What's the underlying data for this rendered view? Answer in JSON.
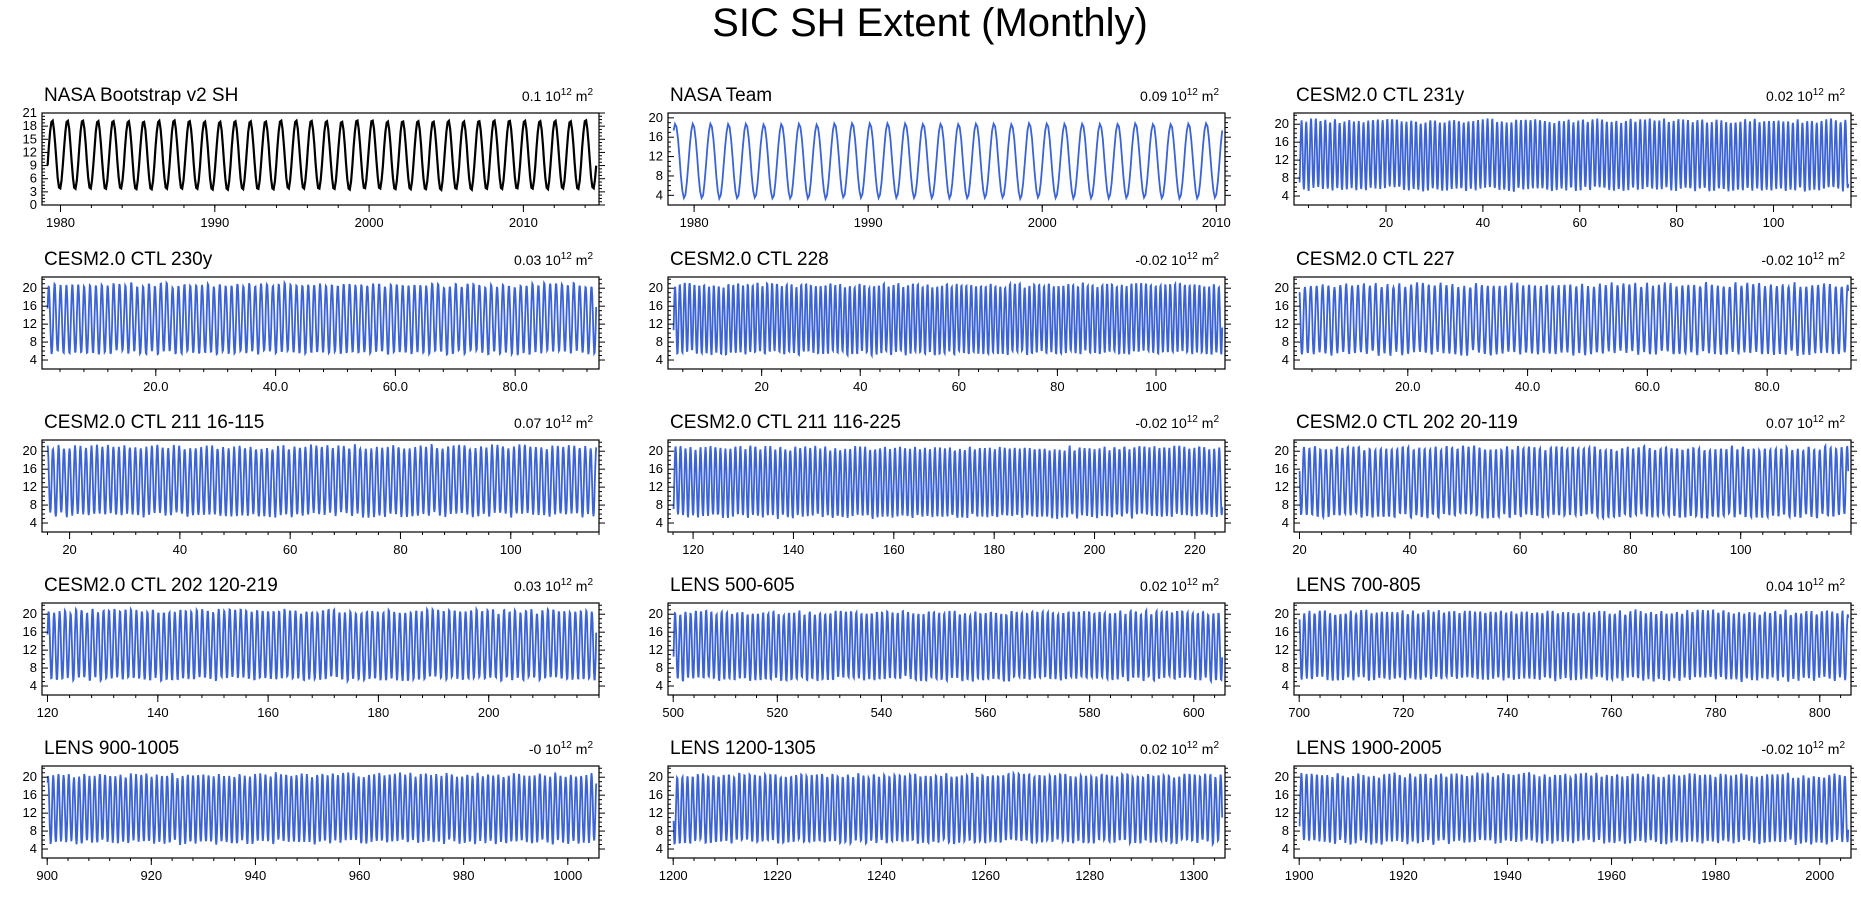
{
  "title": "SIC SH Extent (Monthly)",
  "colors": {
    "black": "#000000",
    "blue": "#3b63d6"
  },
  "chart_data": [
    {
      "type": "line",
      "title": "NASA Bootstrap v2 SH",
      "value": "0.1",
      "color": "#000000",
      "xlim": [
        1978.8,
        2014.9
      ],
      "ylim": [
        0,
        21
      ],
      "yticks": [
        0,
        3,
        6,
        9,
        12,
        15,
        18,
        21
      ],
      "xticks": [
        1980,
        1990,
        2000,
        2010
      ],
      "xticklabels": [
        "1980",
        "1990",
        "2000",
        "2010"
      ],
      "cycles": 36,
      "min": 3.5,
      "max": 19.3,
      "phase": 0.2,
      "noise": 0.25
    },
    {
      "type": "line",
      "title": "NASA Team",
      "value": "0.09",
      "color": "#3b63d6",
      "xlim": [
        1978.5,
        2010.5
      ],
      "ylim": [
        2,
        21
      ],
      "yticks": [
        4,
        8,
        12,
        16,
        20
      ],
      "xticks": [
        1980,
        1990,
        2000,
        2010
      ],
      "xticklabels": [
        "1980",
        "1990",
        "2000",
        "2010"
      ],
      "cycles": 31,
      "min": 3.4,
      "max": 18.8,
      "phase": 0.4,
      "noise": 0.2
    },
    {
      "type": "line",
      "title": "CESM2.0 CTL 231y",
      "value": "0.02",
      "color": "#3b63d6",
      "xlim": [
        1,
        116
      ],
      "ylim": [
        2,
        22.5
      ],
      "yticks": [
        4,
        8,
        12,
        16,
        20
      ],
      "xticks": [
        20,
        40,
        60,
        80,
        100
      ],
      "xticklabels": [
        "20",
        "40",
        "60",
        "80",
        "100"
      ],
      "cycles": 115,
      "min": 5.5,
      "max": 20.8,
      "phase": 0.1,
      "noise": 0.8
    },
    {
      "type": "line",
      "title": "CESM2.0 CTL 230y",
      "value": "0.03",
      "color": "#3b63d6",
      "xlim": [
        1,
        94
      ],
      "ylim": [
        2,
        22.5
      ],
      "yticks": [
        4,
        8,
        12,
        16,
        20
      ],
      "xticks": [
        20,
        40,
        60,
        80
      ],
      "xticklabels": [
        "20.0",
        "40.0",
        "60.0",
        "80.0"
      ],
      "cycles": 93,
      "min": 5.5,
      "max": 20.8,
      "phase": 0.3,
      "noise": 0.8
    },
    {
      "type": "line",
      "title": "CESM2.0 CTL 228",
      "value": "-0.02",
      "color": "#3b63d6",
      "xlim": [
        1,
        114
      ],
      "ylim": [
        2,
        22.5
      ],
      "yticks": [
        4,
        8,
        12,
        16,
        20
      ],
      "xticks": [
        20,
        40,
        60,
        80,
        100
      ],
      "xticklabels": [
        "20",
        "40",
        "60",
        "80",
        "100"
      ],
      "cycles": 113,
      "min": 5.5,
      "max": 20.8,
      "phase": 0.2,
      "noise": 0.8
    },
    {
      "type": "line",
      "title": "CESM2.0 CTL 227",
      "value": "-0.02",
      "color": "#3b63d6",
      "xlim": [
        1,
        94
      ],
      "ylim": [
        2,
        22.5
      ],
      "yticks": [
        4,
        8,
        12,
        16,
        20
      ],
      "xticks": [
        20,
        40,
        60,
        80
      ],
      "xticklabels": [
        "20.0",
        "40.0",
        "60.0",
        "80.0"
      ],
      "cycles": 93,
      "min": 5.5,
      "max": 20.8,
      "phase": 0.6,
      "noise": 0.8
    },
    {
      "type": "line",
      "title": "CESM2.0 CTL 211 16-115",
      "value": "0.07",
      "color": "#3b63d6",
      "xlim": [
        15,
        116
      ],
      "ylim": [
        2,
        22.5
      ],
      "yticks": [
        4,
        8,
        12,
        16,
        20
      ],
      "xticks": [
        20,
        40,
        60,
        80,
        100
      ],
      "xticklabels": [
        "20",
        "40",
        "60",
        "80",
        "100"
      ],
      "cycles": 100,
      "min": 5.8,
      "max": 21.0,
      "phase": 0.5,
      "noise": 0.8
    },
    {
      "type": "line",
      "title": "CESM2.0 CTL 211 116-225",
      "value": "-0.02",
      "color": "#3b63d6",
      "xlim": [
        115,
        226
      ],
      "ylim": [
        2,
        22.5
      ],
      "yticks": [
        4,
        8,
        12,
        16,
        20
      ],
      "xticks": [
        120,
        140,
        160,
        180,
        200,
        220
      ],
      "xticklabels": [
        "120",
        "140",
        "160",
        "180",
        "200",
        "220"
      ],
      "cycles": 110,
      "min": 5.5,
      "max": 20.8,
      "phase": 0.1,
      "noise": 0.8
    },
    {
      "type": "line",
      "title": "CESM2.0 CTL 202 20-119",
      "value": "0.07",
      "color": "#3b63d6",
      "xlim": [
        19,
        120
      ],
      "ylim": [
        2,
        22.5
      ],
      "yticks": [
        4,
        8,
        12,
        16,
        20
      ],
      "xticks": [
        20,
        40,
        60,
        80,
        100
      ],
      "xticklabels": [
        "20",
        "40",
        "60",
        "80",
        "100"
      ],
      "cycles": 100,
      "min": 5.5,
      "max": 20.8,
      "phase": 0.7,
      "noise": 0.8
    },
    {
      "type": "line",
      "title": "CESM2.0 CTL 202 120-219",
      "value": "0.03",
      "color": "#3b63d6",
      "xlim": [
        119,
        220
      ],
      "ylim": [
        2,
        22.5
      ],
      "yticks": [
        4,
        8,
        12,
        16,
        20
      ],
      "xticks": [
        120,
        140,
        160,
        180,
        200
      ],
      "xticklabels": [
        "120",
        "140",
        "160",
        "180",
        "200"
      ],
      "cycles": 100,
      "min": 5.5,
      "max": 20.8,
      "phase": 0.3,
      "noise": 0.8
    },
    {
      "type": "line",
      "title": "LENS 500-605",
      "value": "0.02",
      "color": "#3b63d6",
      "xlim": [
        499,
        606
      ],
      "ylim": [
        2,
        22.5
      ],
      "yticks": [
        4,
        8,
        12,
        16,
        20
      ],
      "xticks": [
        500,
        520,
        540,
        560,
        580,
        600
      ],
      "xticklabels": [
        "500",
        "520",
        "540",
        "560",
        "580",
        "600"
      ],
      "cycles": 106,
      "min": 5.5,
      "max": 20.5,
      "phase": 0.2,
      "noise": 0.8
    },
    {
      "type": "line",
      "title": "LENS 700-805",
      "value": "0.04",
      "color": "#3b63d6",
      "xlim": [
        699,
        806
      ],
      "ylim": [
        2,
        22.5
      ],
      "yticks": [
        4,
        8,
        12,
        16,
        20
      ],
      "xticks": [
        700,
        720,
        740,
        760,
        780,
        800
      ],
      "xticklabels": [
        "700",
        "720",
        "740",
        "760",
        "780",
        "800"
      ],
      "cycles": 106,
      "min": 5.5,
      "max": 20.5,
      "phase": 0.6,
      "noise": 0.8
    },
    {
      "type": "line",
      "title": "LENS 900-1005",
      "value": "-0",
      "color": "#3b63d6",
      "xlim": [
        899,
        1006
      ],
      "ylim": [
        2,
        22.5
      ],
      "yticks": [
        4,
        8,
        12,
        16,
        20
      ],
      "xticks": [
        900,
        920,
        940,
        960,
        980,
        1000
      ],
      "xticklabels": [
        "900",
        "920",
        "940",
        "960",
        "980",
        "1000"
      ],
      "cycles": 106,
      "min": 5.5,
      "max": 20.5,
      "phase": 0.4,
      "noise": 0.8
    },
    {
      "type": "line",
      "title": "LENS 1200-1305",
      "value": "0.02",
      "color": "#3b63d6",
      "xlim": [
        1199,
        1306
      ],
      "ylim": [
        2,
        22.5
      ],
      "yticks": [
        4,
        8,
        12,
        16,
        20
      ],
      "xticks": [
        1200,
        1220,
        1240,
        1260,
        1280,
        1300
      ],
      "xticklabels": [
        "1200",
        "1220",
        "1240",
        "1260",
        "1280",
        "1300"
      ],
      "cycles": 106,
      "min": 5.5,
      "max": 20.5,
      "phase": 0.8,
      "noise": 0.8
    },
    {
      "type": "line",
      "title": "LENS 1900-2005",
      "value": "-0.02",
      "color": "#3b63d6",
      "xlim": [
        1899,
        2006
      ],
      "ylim": [
        2,
        22.5
      ],
      "yticks": [
        4,
        8,
        12,
        16,
        20
      ],
      "xticks": [
        1900,
        1920,
        1940,
        1960,
        1980,
        2000
      ],
      "xticklabels": [
        "1900",
        "1920",
        "1940",
        "1960",
        "1980",
        "2000"
      ],
      "cycles": 106,
      "min": 5.5,
      "max": 20.5,
      "phase": 0.15,
      "noise": 0.8
    }
  ]
}
